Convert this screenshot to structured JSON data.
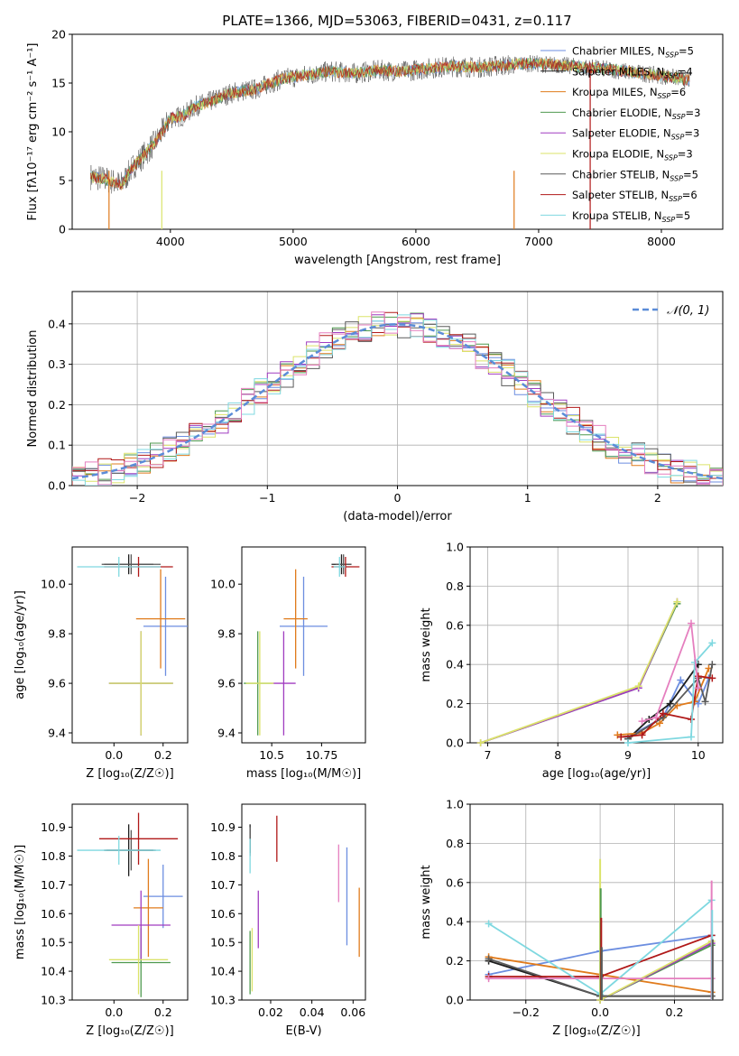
{
  "figure_title": "PLATE=1366, MJD=53063, FIBERID=0431, z=0.117",
  "model_colors": [
    "#6c8ee0",
    "#1e1e1e",
    "#e07b1c",
    "#4f9a4f",
    "#a03cc0",
    "#dbe36a",
    "#5a5a5a",
    "#b01818",
    "#7fd8e0"
  ],
  "chart_data": [
    {
      "id": "spectrum",
      "type": "line",
      "title": "PLATE=1366, MJD=53063, FIBERID=0431, z=0.117",
      "xlabel": "wavelength [Angstrom, rest frame]",
      "ylabel": "Flux [fλ10⁻¹⁷ erg cm⁻² s⁻¹ A⁻¹]",
      "xlim": [
        3200,
        8500
      ],
      "ylim": [
        0,
        20
      ],
      "xticks": [
        4000,
        5000,
        6000,
        7000,
        8000
      ],
      "yticks": [
        0,
        5,
        10,
        15,
        20
      ],
      "legend_position": "top-right",
      "series": [
        {
          "name": "Chabrier MILES, N_SSP=5",
          "color": "#6c8ee0"
        },
        {
          "name": "Salpeter MILES, N_SSP=4",
          "color": "#1e1e1e"
        },
        {
          "name": "Kroupa MILES, N_SSP=6",
          "color": "#e07b1c"
        },
        {
          "name": "Chabrier ELODIE, N_SSP=3",
          "color": "#4f9a4f"
        },
        {
          "name": "Salpeter ELODIE, N_SSP=3",
          "color": "#a03cc0"
        },
        {
          "name": "Kroupa ELODIE, N_SSP=3",
          "color": "#dbe36a"
        },
        {
          "name": "Chabrier STELIB, N_SSP=5",
          "color": "#5a5a5a"
        },
        {
          "name": "Salpeter STELIB, N_SSP=6",
          "color": "#b01818"
        },
        {
          "name": "Kroupa STELIB, N_SSP=5",
          "color": "#7fd8e0"
        }
      ],
      "continuum": {
        "x": [
          3350,
          3450,
          3600,
          3700,
          3800,
          3900,
          4000,
          4100,
          4200,
          4300,
          4500,
          4700,
          4900,
          5100,
          5300,
          5500,
          5700,
          5900,
          6100,
          6300,
          6500,
          6700,
          6900,
          7100,
          7300,
          7500,
          7700,
          7900,
          8100,
          8230
        ],
        "y": [
          5.4,
          5.2,
          4.6,
          6.5,
          7.8,
          9.3,
          11.4,
          11.6,
          12.6,
          13.0,
          14.0,
          14.4,
          15.4,
          15.8,
          16.2,
          16.0,
          16.3,
          16.2,
          16.5,
          16.7,
          16.6,
          16.8,
          17.0,
          16.9,
          16.7,
          16.5,
          16.2,
          15.9,
          15.6,
          15.3
        ]
      }
    },
    {
      "id": "residuals",
      "type": "line",
      "xlabel": "(data-model)/error",
      "ylabel": "Normed distribution",
      "xlim": [
        -2.5,
        2.5
      ],
      "ylim": [
        0,
        0.48
      ],
      "xticks": [
        -2,
        -1,
        0,
        1,
        2
      ],
      "xtick_labels": [
        "−2",
        "−1",
        "0",
        "1",
        "2"
      ],
      "yticks": [
        0.0,
        0.1,
        0.2,
        0.3,
        0.4
      ],
      "grid": true,
      "legend_position": "top-right",
      "series": [
        {
          "name": "𝒩(0, 1)",
          "mu": 0,
          "sigma": 1,
          "color": "#5b8cd8",
          "dashed": true
        }
      ],
      "histogram_bin_width": 0.1
    },
    {
      "id": "age_vs_Z",
      "type": "scatter",
      "xlabel": "Z [log₁₀(Z/Z☉)]",
      "ylabel": "age  [log₁₀(age/yr)]",
      "xlim": [
        -0.17,
        0.3
      ],
      "ylim": [
        9.36,
        10.15
      ],
      "xticks": [
        0.0,
        0.2
      ],
      "yticks": [
        9.4,
        9.6,
        9.8,
        10.0
      ],
      "points": [
        {
          "model": "Chabrier MILES",
          "x": 0.21,
          "y": 9.83,
          "xerr": 0.09,
          "yerr": 0.2
        },
        {
          "model": "Salpeter MILES",
          "x": 0.06,
          "y": 10.08,
          "xerr": 0.1,
          "yerr": 0.04
        },
        {
          "model": "Kroupa MILES",
          "x": 0.19,
          "y": 9.86,
          "xerr": 0.1,
          "yerr": 0.2
        },
        {
          "model": "Chabrier ELODIE",
          "x": 0.11,
          "y": 9.6,
          "xerr": 0.13,
          "yerr": 0.21
        },
        {
          "model": "Salpeter ELODIE",
          "x": 0.11,
          "y": 9.6,
          "xerr": 0.13,
          "yerr": 0.21
        },
        {
          "model": "Kroupa ELODIE",
          "x": 0.11,
          "y": 9.6,
          "xerr": 0.13,
          "yerr": 0.21
        },
        {
          "model": "Chabrier STELIB",
          "x": 0.07,
          "y": 10.08,
          "xerr": 0.12,
          "yerr": 0.04
        },
        {
          "model": "Salpeter STELIB",
          "x": 0.1,
          "y": 10.07,
          "xerr": 0.14,
          "yerr": 0.04
        },
        {
          "model": "Kroupa STELIB",
          "x": 0.02,
          "y": 10.07,
          "xerr": 0.17,
          "yerr": 0.04
        }
      ]
    },
    {
      "id": "age_vs_mass",
      "type": "scatter",
      "xlabel": "mass [log₁₀(M/M☉)]",
      "ylabel": "",
      "xlim": [
        10.35,
        10.97
      ],
      "ylim": [
        9.36,
        10.15
      ],
      "xticks": [
        10.5,
        10.75
      ],
      "yticks": [
        9.4,
        9.6,
        9.8,
        10.0
      ],
      "points": [
        {
          "model": "Chabrier MILES",
          "x": 10.66,
          "y": 9.83,
          "xerr": 0.12,
          "yerr": 0.2
        },
        {
          "model": "Salpeter MILES",
          "x": 10.85,
          "y": 10.08,
          "xerr": 0.05,
          "yerr": 0.04
        },
        {
          "model": "Kroupa MILES",
          "x": 10.62,
          "y": 9.86,
          "xerr": 0.06,
          "yerr": 0.2
        },
        {
          "model": "Chabrier ELODIE",
          "x": 10.43,
          "y": 9.6,
          "xerr": 0.07,
          "yerr": 0.21
        },
        {
          "model": "Salpeter ELODIE",
          "x": 10.56,
          "y": 9.6,
          "xerr": 0.06,
          "yerr": 0.21
        },
        {
          "model": "Kroupa ELODIE",
          "x": 10.44,
          "y": 9.6,
          "xerr": 0.07,
          "yerr": 0.21
        },
        {
          "model": "Chabrier STELIB",
          "x": 10.86,
          "y": 10.08,
          "xerr": 0.04,
          "yerr": 0.04
        },
        {
          "model": "Salpeter STELIB",
          "x": 10.87,
          "y": 10.07,
          "xerr": 0.07,
          "yerr": 0.04
        },
        {
          "model": "Kroupa STELIB",
          "x": 10.84,
          "y": 10.07,
          "xerr": 0.03,
          "yerr": 0.04
        }
      ]
    },
    {
      "id": "massweight_vs_age",
      "type": "line",
      "xlabel": "age  [log₁₀(age/yr)]",
      "ylabel": "mass weight",
      "xlim": [
        6.75,
        10.35
      ],
      "ylim": [
        0,
        1.0
      ],
      "xticks": [
        7,
        8,
        9,
        10
      ],
      "yticks": [
        0.0,
        0.2,
        0.4,
        0.6,
        0.8,
        1.0
      ],
      "grid": true,
      "series": [
        {
          "model": "Chabrier MILES",
          "x": [
            9.0,
            9.5,
            9.75,
            10.0,
            10.15
          ],
          "y": [
            0.03,
            0.13,
            0.32,
            0.2,
            0.33
          ]
        },
        {
          "model": "Salpeter MILES",
          "x": [
            9.0,
            9.3,
            9.6,
            10.0
          ],
          "y": [
            0.02,
            0.12,
            0.2,
            0.4
          ]
        },
        {
          "model": "Kroupa MILES",
          "x": [
            8.85,
            9.2,
            9.45,
            9.7,
            9.95,
            10.15
          ],
          "y": [
            0.04,
            0.05,
            0.1,
            0.19,
            0.21,
            0.38
          ]
        },
        {
          "model": "Chabrier ELODIE",
          "x": [
            6.9,
            9.15,
            9.7
          ],
          "y": [
            0.0,
            0.28,
            0.71
          ]
        },
        {
          "model": "Salpeter ELODIE",
          "x": [
            6.9,
            9.15,
            9.7
          ],
          "y": [
            0.0,
            0.28,
            0.72
          ]
        },
        {
          "model": "Kroupa ELODIE",
          "x": [
            6.9,
            9.15,
            9.7
          ],
          "y": [
            0.0,
            0.29,
            0.72
          ]
        },
        {
          "model": "Chabrier STELIB",
          "x": [
            9.0,
            9.5,
            10.0,
            10.1,
            10.2
          ],
          "y": [
            0.02,
            0.13,
            0.33,
            0.21,
            0.4
          ]
        },
        {
          "model": "Salpeter STELIB",
          "x": [
            8.9,
            9.2,
            9.5,
            9.9,
            10.0,
            10.2
          ],
          "y": [
            0.03,
            0.04,
            0.15,
            0.12,
            0.34,
            0.33
          ]
        },
        {
          "model": "Kroupa STELIB",
          "x": [
            9.0,
            9.9,
            9.95,
            10.2
          ],
          "y": [
            0.0,
            0.03,
            0.41,
            0.51
          ]
        },
        {
          "model": "Kroupa STELIB (pink)",
          "x": [
            9.2,
            9.4,
            9.9,
            10.0
          ],
          "y": [
            0.11,
            0.13,
            0.61,
            0.28
          ]
        }
      ]
    },
    {
      "id": "mass_vs_Z",
      "type": "scatter",
      "xlabel": "Z [log₁₀(Z/Z☉)]",
      "ylabel": "mass [log₁₀(M/M☉)]",
      "xlim": [
        -0.17,
        0.3
      ],
      "ylim": [
        10.3,
        10.98
      ],
      "xticks": [
        0.0,
        0.2
      ],
      "yticks": [
        10.3,
        10.4,
        10.5,
        10.6,
        10.7,
        10.8,
        10.9
      ],
      "points": [
        {
          "model": "Chabrier MILES",
          "x": 0.2,
          "y": 10.66,
          "xerr": 0.08,
          "yerr": 0.11
        },
        {
          "model": "Salpeter MILES",
          "x": 0.06,
          "y": 10.82,
          "xerr": 0.1,
          "yerr": 0.09
        },
        {
          "model": "Kroupa MILES",
          "x": 0.14,
          "y": 10.62,
          "xerr": 0.06,
          "yerr": 0.17
        },
        {
          "model": "Chabrier ELODIE",
          "x": 0.11,
          "y": 10.43,
          "xerr": 0.12,
          "yerr": 0.12
        },
        {
          "model": "Salpeter ELODIE",
          "x": 0.11,
          "y": 10.56,
          "xerr": 0.12,
          "yerr": 0.12
        },
        {
          "model": "Kroupa ELODIE",
          "x": 0.1,
          "y": 10.44,
          "xerr": 0.12,
          "yerr": 0.12
        },
        {
          "model": "Chabrier STELIB",
          "x": 0.07,
          "y": 10.82,
          "xerr": 0.1,
          "yerr": 0.07
        },
        {
          "model": "Salpeter STELIB",
          "x": 0.1,
          "y": 10.86,
          "xerr": 0.16,
          "yerr": 0.09
        },
        {
          "model": "Kroupa STELIB",
          "x": 0.02,
          "y": 10.82,
          "xerr": 0.17,
          "yerr": 0.05
        }
      ]
    },
    {
      "id": "mass_vs_EBV",
      "type": "scatter",
      "xlabel": "E(B-V)",
      "ylabel": "",
      "xlim": [
        0.006,
        0.066
      ],
      "ylim": [
        10.3,
        10.98
      ],
      "xticks": [
        0.02,
        0.04,
        0.06
      ],
      "yticks": [
        10.3,
        10.4,
        10.5,
        10.6,
        10.7,
        10.8,
        10.9
      ],
      "points": [
        {
          "model": "Chabrier MILES",
          "x": 0.057,
          "y": 10.66,
          "yerr": 0.17
        },
        {
          "model": "Salpeter MILES",
          "x": 0.01,
          "y": 10.86,
          "yerr": 0.05
        },
        {
          "model": "Kroupa MILES",
          "x": 0.063,
          "y": 10.57,
          "yerr": 0.12
        },
        {
          "model": "Chabrier ELODIE",
          "x": 0.01,
          "y": 10.43,
          "yerr": 0.11
        },
        {
          "model": "Salpeter ELODIE",
          "x": 0.014,
          "y": 10.58,
          "yerr": 0.1
        },
        {
          "model": "Kroupa ELODIE",
          "x": 0.011,
          "y": 10.44,
          "yerr": 0.11
        },
        {
          "model": "Chabrier STELIB",
          "x": 0.01,
          "y": 10.85,
          "yerr": 0.05
        },
        {
          "model": "Salpeter STELIB",
          "x": 0.023,
          "y": 10.86,
          "yerr": 0.08
        },
        {
          "model": "Kroupa STELIB",
          "x": 0.01,
          "y": 10.8,
          "yerr": 0.06
        },
        {
          "model": "Kroupa STELIB (pink)",
          "x": 0.053,
          "y": 10.74,
          "yerr": 0.1
        }
      ]
    },
    {
      "id": "massweight_vs_Z",
      "type": "line",
      "xlabel": "Z [log₁₀(Z/Z☉)]",
      "ylabel": "mass weight",
      "xlim": [
        -0.35,
        0.33
      ],
      "ylim": [
        0,
        1.0
      ],
      "xticks": [
        -0.2,
        0.0,
        0.2
      ],
      "xtick_labels": [
        "−0.2",
        "0.0",
        "0.2"
      ],
      "yticks": [
        0.0,
        0.2,
        0.4,
        0.6,
        0.8,
        1.0
      ],
      "grid": true,
      "series": [
        {
          "model": "Chabrier MILES",
          "x": [
            -0.3,
            0.0,
            0.3
          ],
          "y": [
            0.13,
            0.25,
            0.33
          ]
        },
        {
          "model": "Salpeter MILES",
          "x": [
            -0.3,
            0.0,
            0.3
          ],
          "y": [
            0.2,
            0.02,
            0.02
          ]
        },
        {
          "model": "Kroupa MILES",
          "x": [
            -0.3,
            0.0,
            0.3
          ],
          "y": [
            0.22,
            0.13,
            0.04
          ]
        },
        {
          "model": "Chabrier ELODIE",
          "x": [
            0.0,
            0.3
          ],
          "y": [
            0.0,
            0.28
          ]
        },
        {
          "model": "Salpeter ELODIE",
          "x": [
            0.0,
            0.3
          ],
          "y": [
            0.0,
            0.29
          ]
        },
        {
          "model": "Kroupa ELODIE",
          "x": [
            0.0,
            0.3
          ],
          "y": [
            0.0,
            0.3
          ]
        },
        {
          "model": "Chabrier STELIB",
          "x": [
            -0.3,
            0.0,
            0.3
          ],
          "y": [
            0.21,
            0.02,
            0.02
          ]
        },
        {
          "model": "Salpeter STELIB",
          "x": [
            -0.3,
            0.0,
            0.3
          ],
          "y": [
            0.12,
            0.12,
            0.33
          ]
        },
        {
          "model": "Kroupa STELIB",
          "x": [
            -0.3,
            0.0,
            0.3
          ],
          "y": [
            0.39,
            0.03,
            0.51
          ]
        },
        {
          "model": "Kroupa STELIB (pink)",
          "x": [
            -0.3,
            0.0,
            0.3
          ],
          "y": [
            0.11,
            0.11,
            0.11
          ]
        }
      ],
      "vertical_spikes": [
        {
          "x": 0.0,
          "y": [
            0.0,
            0.72
          ]
        },
        {
          "x": 0.3,
          "y": [
            0.0,
            0.61
          ]
        }
      ]
    }
  ]
}
